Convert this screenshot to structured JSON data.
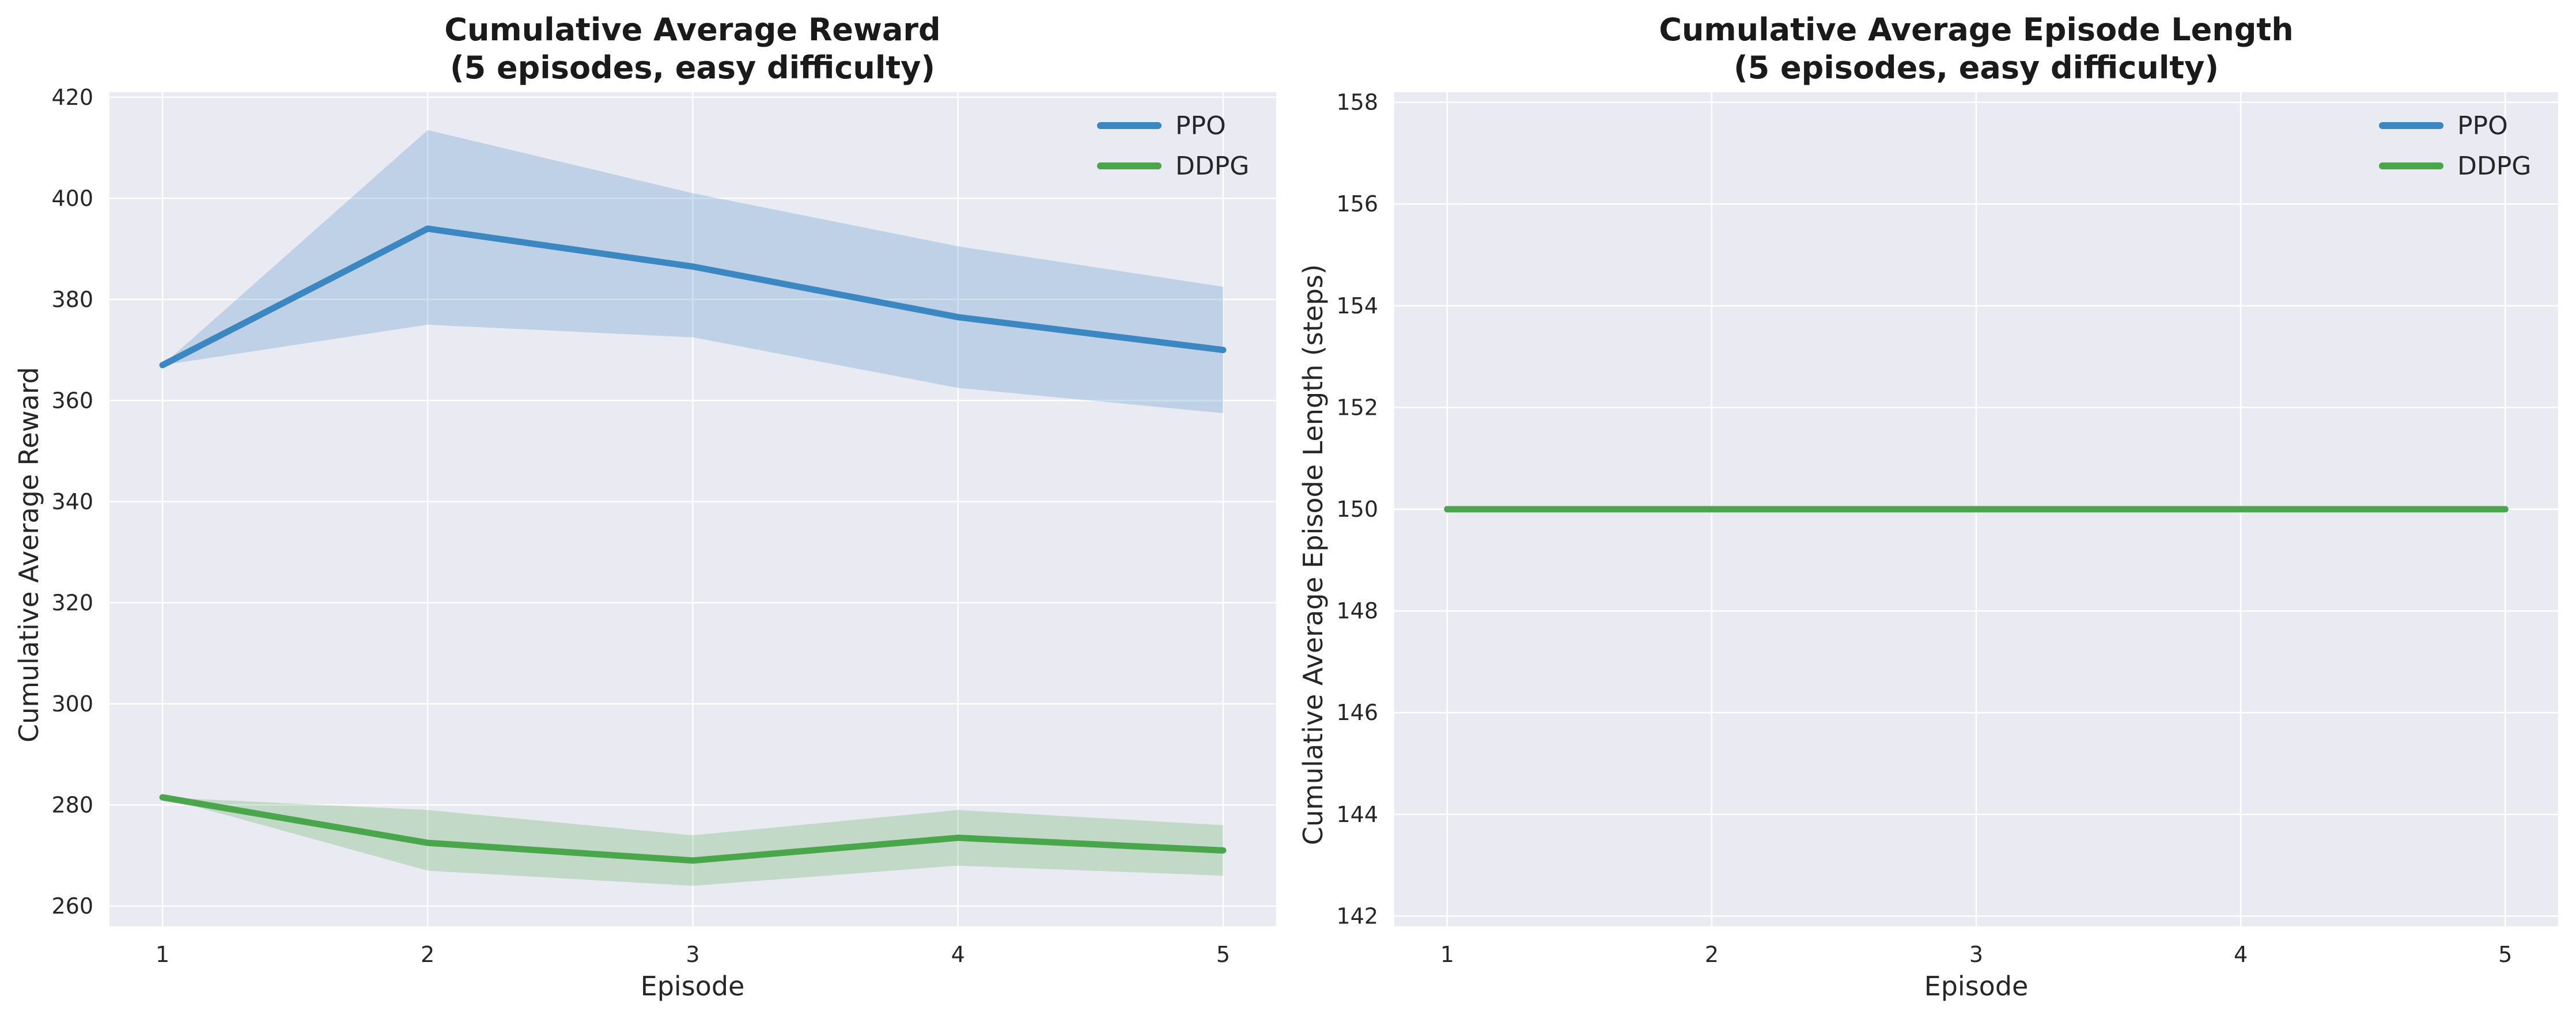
{
  "chart_data": [
    {
      "type": "line",
      "title_line1": "Cumulative Average Reward",
      "title_line2": "(5 episodes, easy difficulty)",
      "xlabel": "Episode",
      "ylabel": "Cumulative Average Reward",
      "x": [
        1,
        2,
        3,
        4,
        5
      ],
      "xlim": [
        0.8,
        5.2
      ],
      "ylim": [
        256,
        421
      ],
      "yticks": [
        260,
        280,
        300,
        320,
        340,
        360,
        380,
        400,
        420
      ],
      "grid": true,
      "legend": "top-right",
      "series": [
        {
          "name": "PPO",
          "color": "#3b87c2",
          "values": [
            367,
            394,
            386.5,
            376.5,
            370
          ],
          "lower": [
            367,
            375,
            372.5,
            362.5,
            357.5
          ],
          "upper": [
            367,
            413.5,
            401,
            390.5,
            382.5
          ]
        },
        {
          "name": "DDPG",
          "color": "#4aa64a",
          "values": [
            281.5,
            272.5,
            269,
            273.5,
            271
          ],
          "lower": [
            281.5,
            267,
            264,
            268,
            266
          ],
          "upper": [
            281.5,
            279,
            274,
            279,
            276
          ]
        }
      ]
    },
    {
      "type": "line",
      "title_line1": "Cumulative Average Episode Length",
      "title_line2": "(5 episodes, easy difficulty)",
      "xlabel": "Episode",
      "ylabel": "Cumulative Average Episode Length (steps)",
      "x": [
        1,
        2,
        3,
        4,
        5
      ],
      "xlim": [
        0.8,
        5.2
      ],
      "ylim": [
        141.8,
        158.2
      ],
      "yticks": [
        142,
        144,
        146,
        148,
        150,
        152,
        154,
        156,
        158
      ],
      "grid": true,
      "legend": "top-right",
      "series": [
        {
          "name": "PPO",
          "color": "#3b87c2",
          "values": [
            150,
            150,
            150,
            150,
            150
          ]
        },
        {
          "name": "DDPG",
          "color": "#4aa64a",
          "values": [
            150,
            150,
            150,
            150,
            150
          ]
        }
      ]
    }
  ]
}
